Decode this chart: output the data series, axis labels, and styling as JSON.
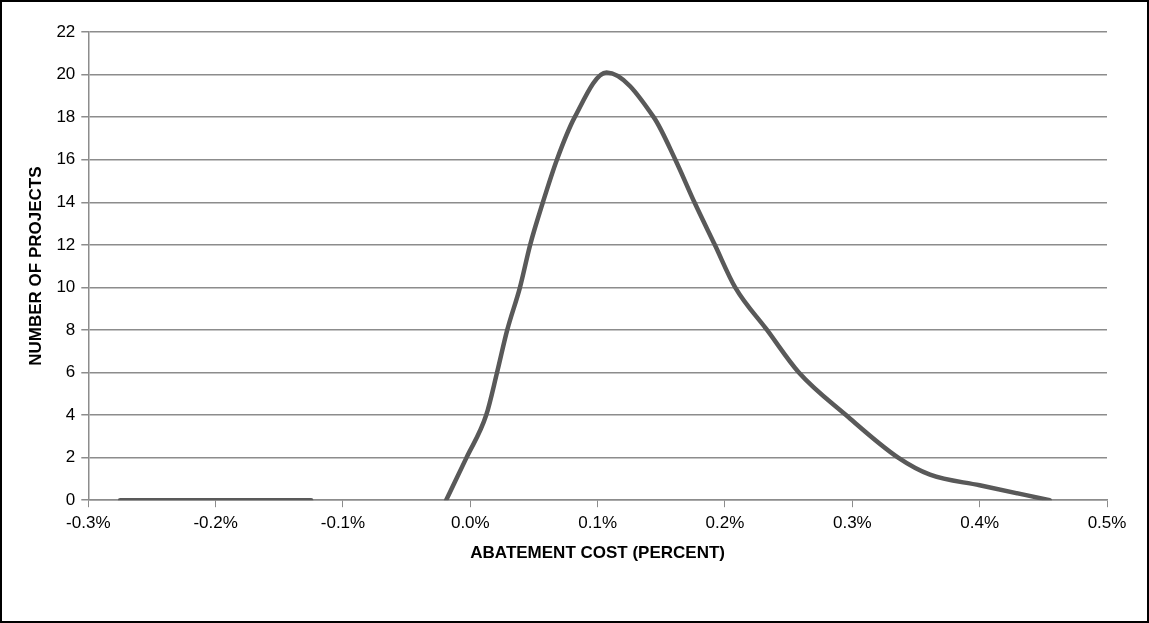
{
  "chart_data": {
    "type": "line",
    "xlabel": "ABATEMENT COST (PERCENT)",
    "ylabel": "NUMBER OF PROJECTS",
    "x": [
      -0.275,
      -0.2,
      -0.125,
      null,
      -0.019,
      -0.003,
      0.0125,
      0.021,
      0.029,
      0.039,
      0.047,
      0.057,
      0.068,
      0.082,
      0.107,
      0.144,
      0.161,
      0.176,
      0.192,
      0.208,
      0.233,
      0.258,
      0.295,
      0.336,
      0.361,
      0.4,
      0.455
    ],
    "series": [
      {
        "color": "#595959",
        "values": [
          0,
          0,
          0,
          null,
          0,
          2,
          4,
          6,
          8,
          10,
          12,
          14,
          16,
          18,
          20.1,
          18,
          16,
          14,
          12,
          10,
          8,
          6,
          4,
          2,
          1.2,
          0.7,
          0
        ]
      }
    ],
    "xlim": [
      -0.3,
      0.5
    ],
    "xticks": [
      {
        "value": -0.3,
        "label": "-0.3%"
      },
      {
        "value": -0.2,
        "label": "-0.2%"
      },
      {
        "value": -0.1,
        "label": "-0.1%"
      },
      {
        "value": 0,
        "label": "0.0%"
      },
      {
        "value": 0.1,
        "label": "0.1%"
      },
      {
        "value": 0.2,
        "label": "0.2%"
      },
      {
        "value": 0.3,
        "label": "0.3%"
      },
      {
        "value": 0.4,
        "label": "0.4%"
      },
      {
        "value": 0.5,
        "label": "0.5%"
      }
    ],
    "ylim": [
      0,
      22
    ],
    "yticks": [
      0,
      2,
      4,
      6,
      8,
      10,
      12,
      14,
      16,
      18,
      20,
      22
    ],
    "grid": "y",
    "legend": false,
    "marker": "none",
    "line_style": "solid"
  }
}
